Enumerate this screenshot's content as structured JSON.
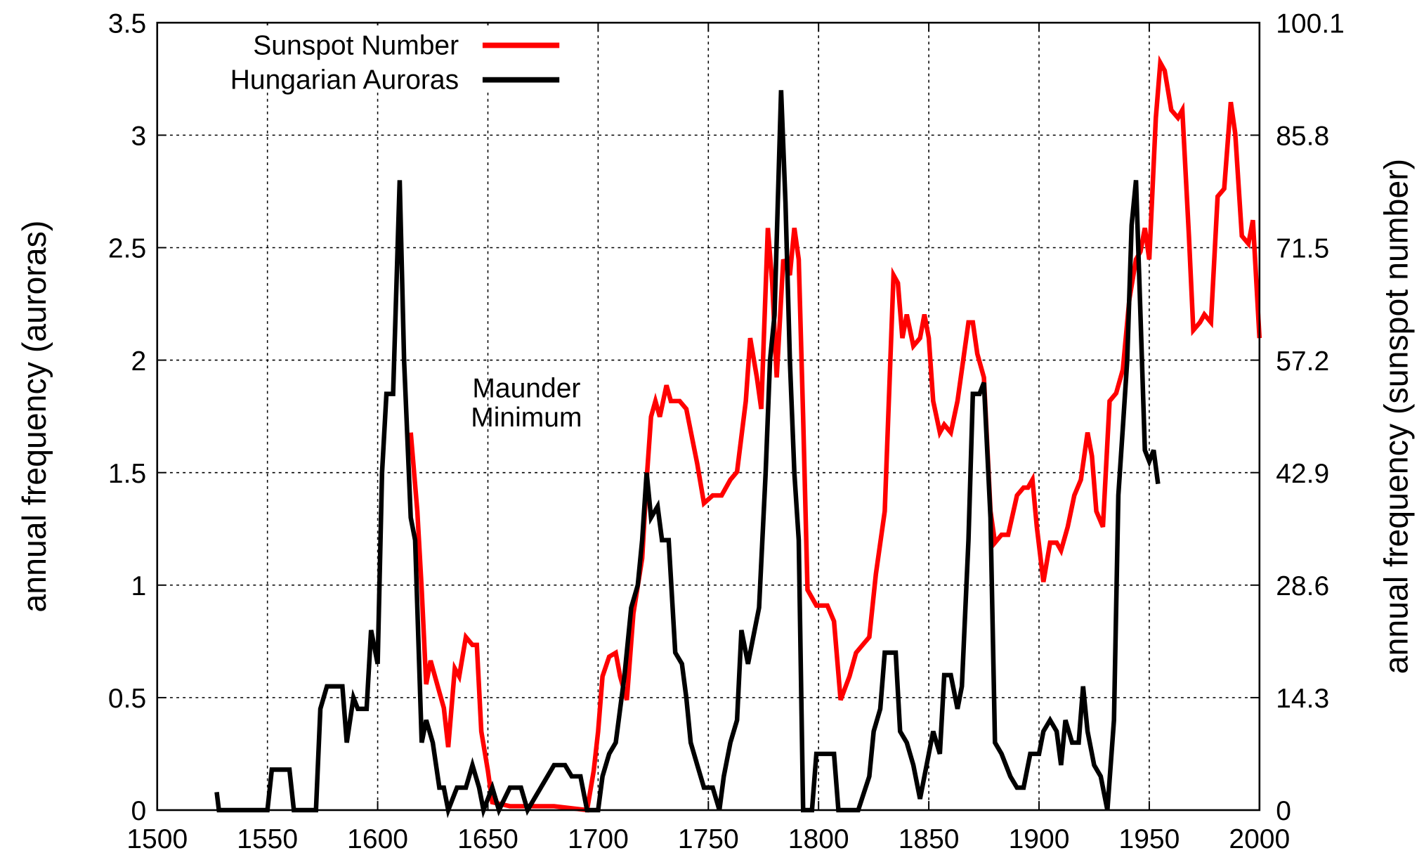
{
  "chart_data": {
    "type": "line",
    "y_label": "annual frequency (auroras)",
    "y2_label": "annual frequency (sunspot number)",
    "annotations": [
      "Maunder",
      "Minimum"
    ],
    "xlim": [
      1500,
      2000
    ],
    "xticks": [
      1500,
      1550,
      1600,
      1650,
      1700,
      1750,
      1800,
      1850,
      1900,
      1950,
      2000
    ],
    "ylim": [
      0,
      3.5
    ],
    "yticks": [
      0,
      0.5,
      1,
      1.5,
      2,
      2.5,
      3,
      3.5
    ],
    "y2lim": [
      0,
      100.1
    ],
    "y2ticks": [
      0,
      14.3,
      28.6,
      42.9,
      57.2,
      71.5,
      85.8,
      100.1
    ],
    "grid": true,
    "series": [
      {
        "name": "Sunspot Number",
        "color": "#ff0000",
        "axis": "y2",
        "x": [
          1615,
          1618,
          1620,
          1622,
          1624,
          1628,
          1630,
          1632,
          1635,
          1637,
          1640,
          1643,
          1645,
          1647,
          1650,
          1652,
          1660,
          1670,
          1680,
          1695,
          1698,
          1700,
          1702,
          1705,
          1708,
          1710,
          1713,
          1716,
          1720,
          1722,
          1724,
          1726,
          1728,
          1731,
          1733,
          1737,
          1740,
          1745,
          1748,
          1752,
          1756,
          1760,
          1763,
          1767,
          1769,
          1772,
          1774,
          1777,
          1779,
          1781,
          1784,
          1787,
          1789,
          1791,
          1793,
          1795,
          1799,
          1804,
          1807,
          1810,
          1814,
          1817,
          1820,
          1823,
          1826,
          1830,
          1834,
          1836,
          1838,
          1840,
          1843,
          1846,
          1848,
          1850,
          1852,
          1855,
          1857,
          1860,
          1863,
          1866,
          1868,
          1870,
          1872,
          1875,
          1878,
          1880,
          1883,
          1886,
          1890,
          1893,
          1895,
          1897,
          1899,
          1902,
          1905,
          1908,
          1910,
          1913,
          1916,
          1919,
          1922,
          1924,
          1926,
          1929,
          1932,
          1935,
          1938,
          1941,
          1944,
          1946,
          1948,
          1950,
          1953,
          1955,
          1957,
          1960,
          1963,
          1965,
          1968,
          1970,
          1973,
          1975,
          1978,
          1981,
          1984,
          1987,
          1989,
          1992,
          1995,
          1997,
          2000
        ],
        "values": [
          48,
          38,
          28,
          16,
          19,
          15,
          13,
          8,
          18,
          17,
          22,
          21,
          21,
          10,
          5,
          1,
          0.5,
          0.5,
          0.5,
          0,
          5,
          10,
          17,
          19.5,
          20,
          17,
          14,
          25,
          32,
          42,
          50,
          52,
          50,
          54,
          52,
          52,
          51,
          44,
          39,
          40,
          40,
          42,
          43,
          52,
          60,
          55,
          51,
          74,
          67,
          55,
          70,
          68,
          74,
          70,
          50,
          28,
          26,
          26,
          24,
          14,
          17,
          20,
          21,
          22,
          30,
          38,
          68,
          67,
          60,
          63,
          59,
          60,
          63,
          60,
          52,
          48,
          49,
          48,
          52,
          58,
          62,
          62,
          58,
          55,
          38,
          34,
          35,
          35,
          40,
          41,
          41,
          42,
          36,
          29,
          34,
          34,
          33,
          36,
          40,
          42,
          48,
          45,
          38,
          36,
          52,
          53,
          56,
          65,
          70,
          71,
          74,
          70,
          88,
          95,
          94,
          89,
          88,
          89,
          73,
          61,
          62,
          63,
          62,
          78,
          79,
          90,
          86,
          73,
          72,
          75,
          60
        ]
      },
      {
        "name": "Hungarian Auroras",
        "color": "#000000",
        "axis": "y",
        "x": [
          1527,
          1528,
          1550,
          1552,
          1560,
          1562,
          1572,
          1574,
          1577,
          1584,
          1586,
          1589,
          1591,
          1595,
          1597,
          1600,
          1602,
          1604,
          1607,
          1610,
          1612,
          1615,
          1617,
          1620,
          1622,
          1625,
          1628,
          1630,
          1632,
          1636,
          1640,
          1643,
          1646,
          1648,
          1652,
          1655,
          1660,
          1665,
          1668,
          1680,
          1685,
          1688,
          1692,
          1695,
          1700,
          1702,
          1705,
          1708,
          1710,
          1712,
          1715,
          1718,
          1720,
          1722,
          1724,
          1727,
          1729,
          1732,
          1735,
          1738,
          1740,
          1742,
          1745,
          1748,
          1752,
          1755,
          1757,
          1760,
          1763,
          1765,
          1768,
          1770,
          1773,
          1776,
          1778,
          1780,
          1783,
          1785,
          1787,
          1789,
          1791,
          1793,
          1797,
          1799,
          1807,
          1809,
          1818,
          1823,
          1825,
          1828,
          1830,
          1835,
          1837,
          1840,
          1843,
          1846,
          1850,
          1852,
          1855,
          1857,
          1860,
          1863,
          1865,
          1868,
          1870,
          1873,
          1875,
          1878,
          1880,
          1883,
          1887,
          1890,
          1893,
          1896,
          1900,
          1902,
          1905,
          1908,
          1910,
          1912,
          1915,
          1918,
          1920,
          1922,
          1925,
          1928,
          1931,
          1934,
          1936,
          1938,
          1940,
          1942,
          1944,
          1946,
          1948,
          1950,
          1952,
          1954
        ],
        "values": [
          0.08,
          0,
          0,
          0.18,
          0.18,
          0,
          0,
          0.45,
          0.55,
          0.55,
          0.3,
          0.5,
          0.45,
          0.45,
          0.8,
          0.65,
          1.5,
          1.85,
          1.85,
          2.8,
          2,
          1.3,
          1.2,
          0.3,
          0.4,
          0.3,
          0.1,
          0.1,
          0,
          0.1,
          0.1,
          0.2,
          0.1,
          0,
          0.1,
          0,
          0.1,
          0.1,
          0,
          0.2,
          0.2,
          0.15,
          0.15,
          0,
          0,
          0.15,
          0.25,
          0.3,
          0.45,
          0.6,
          0.9,
          1,
          1.2,
          1.5,
          1.3,
          1.35,
          1.2,
          1.2,
          0.7,
          0.65,
          0.5,
          0.3,
          0.2,
          0.1,
          0.1,
          0,
          0.15,
          0.3,
          0.4,
          0.8,
          0.65,
          0.75,
          0.9,
          1.5,
          2,
          2.2,
          3.2,
          2.7,
          2,
          1.5,
          1.2,
          0,
          0,
          0.25,
          0.25,
          0,
          0,
          0.15,
          0.35,
          0.45,
          0.7,
          0.7,
          0.35,
          0.3,
          0.2,
          0.05,
          0.25,
          0.35,
          0.25,
          0.6,
          0.6,
          0.45,
          0.55,
          1.2,
          1.85,
          1.85,
          1.9,
          1.3,
          0.3,
          0.25,
          0.15,
          0.1,
          0.1,
          0.25,
          0.25,
          0.35,
          0.4,
          0.35,
          0.2,
          0.4,
          0.3,
          0.3,
          0.55,
          0.35,
          0.2,
          0.15,
          0,
          0.4,
          1.4,
          1.7,
          2,
          2.6,
          2.8,
          2.2,
          1.6,
          1.55,
          1.6,
          1.45
        ]
      }
    ]
  }
}
